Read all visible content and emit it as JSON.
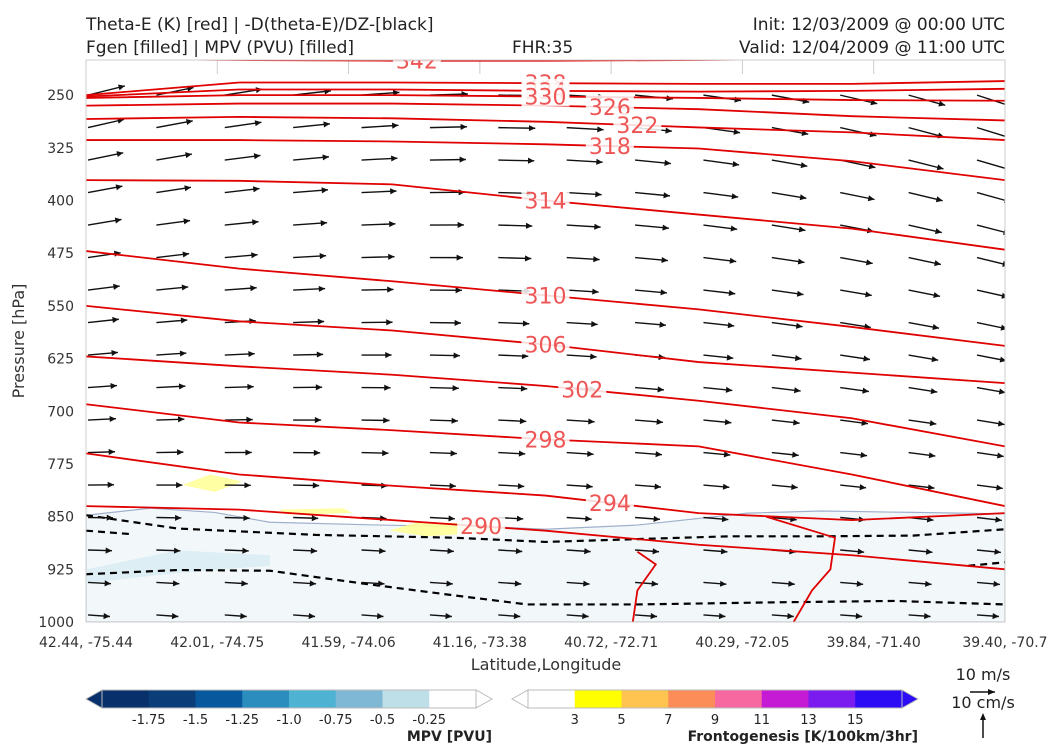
{
  "header": {
    "line1_left": "Theta-E (K) [red] | -D(theta-E)/DZ-[black]",
    "line2_left": "Fgen [filled] | MPV (PVU) [filled]",
    "fhr": "FHR:35",
    "init": "Init: 12/03/2009 @ 00:00 UTC",
    "valid": "Valid: 12/04/2009 @ 11:00 UTC"
  },
  "chart_data": {
    "type": "cross-section",
    "ylabel": "Pressure [hPa]",
    "xlabel": "Latitude,Longitude",
    "yticks": [
      250,
      325,
      400,
      475,
      550,
      625,
      700,
      775,
      850,
      925,
      1000
    ],
    "xticks": [
      "42.44, -75.44",
      "42.01, -74.75",
      "41.59, -74.06",
      "41.16, -73.38",
      "40.72, -72.71",
      "40.29, -72.05",
      "39.84, -71.40",
      "39.40, -70.7"
    ],
    "theta_e_contours": [
      {
        "label": "342",
        "p": [
          198,
          200,
          201,
          201,
          200,
          198,
          197
        ]
      },
      {
        "label": "338",
        "p": [
          250,
          232,
          232,
          233,
          234,
          234,
          230
        ]
      },
      {
        "label": "334",
        "p": [
          252,
          242,
          242,
          244,
          245,
          244,
          241
        ]
      },
      {
        "label": "330",
        "p": [
          254,
          250,
          250,
          252,
          254,
          257,
          258
        ]
      },
      {
        "label": "326",
        "p": [
          265,
          262,
          262,
          265,
          270,
          280,
          286
        ]
      },
      {
        "label": "322",
        "p": [
          284,
          281,
          283,
          288,
          296,
          303,
          314
        ]
      },
      {
        "label": "318",
        "p": [
          314,
          314,
          316,
          320,
          326,
          344,
          371
        ]
      },
      {
        "label": "314",
        "p": [
          371,
          372,
          377,
          400,
          420,
          440,
          470
        ]
      },
      {
        "label": "310",
        "p": [
          472,
          497,
          515,
          535,
          555,
          580,
          607
        ]
      },
      {
        "label": "306",
        "p": [
          550,
          572,
          585,
          605,
          630,
          645,
          660
        ]
      },
      {
        "label": "302",
        "p": [
          622,
          636,
          648,
          664,
          685,
          710,
          750
        ]
      },
      {
        "label": "298",
        "p": [
          690,
          716,
          727,
          740,
          750,
          790,
          835
        ]
      },
      {
        "label": "294",
        "p": [
          760,
          790,
          806,
          820,
          845,
          855,
          845
        ]
      },
      {
        "label": "290",
        "p": [
          835,
          840,
          855,
          870,
          890,
          905,
          925
        ]
      }
    ],
    "ref_vectors": {
      "u_label": "10 m/s",
      "w_label": "10 cm/s"
    },
    "colorbars": [
      {
        "title": "MPV [PVU]",
        "ticks": [
          "-1.75",
          "-1.5",
          "-1.25",
          "-1.0",
          "-0.75",
          "-0.5",
          "-0.25"
        ],
        "colors": [
          "#08306b",
          "#0b3d78",
          "#08589e",
          "#2b8cbe",
          "#4eb3d3",
          "#7fb8d4",
          "#bedfe8",
          "#ffffff"
        ]
      },
      {
        "title": "Frontogenesis [K/100km/3hr]",
        "ticks": [
          "3",
          "5",
          "7",
          "9",
          "11",
          "13",
          "15"
        ],
        "colors": [
          "#ffffff",
          "#ffff00",
          "#fec44f",
          "#fc8d59",
          "#f768a1",
          "#c51bd4",
          "#7a1bf0",
          "#2c0bf5"
        ]
      }
    ]
  }
}
